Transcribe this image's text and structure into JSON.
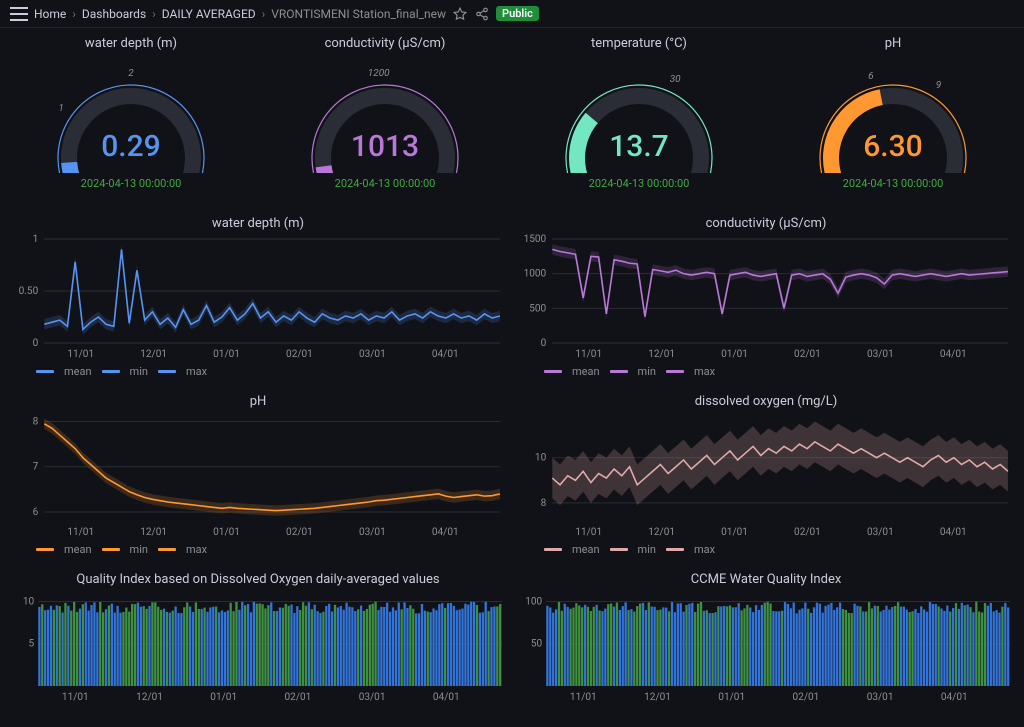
{
  "header": {
    "breadcrumbs": [
      "Home",
      "Dashboards",
      "DAILY AVERAGED",
      "VRONTISMENI Station_final_new"
    ],
    "public_label": "Public"
  },
  "timestamp": "2024-04-13 00:00:00",
  "colors": {
    "bg": "#111217",
    "grid": "#2a2d36",
    "axis_text": "#8e8e8e",
    "ts_green": "#3fa93f",
    "series": {
      "water_depth": "#5794f2",
      "conductivity": "#b877d9",
      "temperature": "#73e6c2",
      "ph": "#ff9830",
      "do": "#e0a8a8",
      "bar_blue": "#3274d9",
      "bar_green": "#3f9142"
    }
  },
  "gauges": [
    {
      "title": "water depth (m)",
      "value": "0.29",
      "color": "#5794f2",
      "min": 0,
      "max": 4,
      "ticks": [
        0,
        1,
        2,
        4
      ],
      "frac": 0.0725
    },
    {
      "title": "conductivity (μS/cm)",
      "value": "1013",
      "color": "#b877d9",
      "min": 0,
      "max": 2500,
      "ticks": [
        0,
        1200,
        2500
      ],
      "frac": 0.056
    },
    {
      "title": "temperature (°C)",
      "value": "13.7",
      "color": "#73e6c2",
      "min": 0,
      "max": 50,
      "ticks": [
        0,
        30,
        50
      ],
      "frac": 0.274
    },
    {
      "title": "pH",
      "value": "6.30",
      "color": "#ff9830",
      "min": 0,
      "max": 14,
      "ticks": [
        0,
        6,
        9,
        14
      ],
      "frac": 0.45
    }
  ],
  "x_axis": {
    "labels": [
      "11/01",
      "12/01",
      "01/01",
      "02/01",
      "03/01",
      "04/01"
    ],
    "positions": [
      0.08,
      0.24,
      0.4,
      0.56,
      0.72,
      0.88
    ]
  },
  "line_charts": [
    {
      "title": "water depth (m)",
      "color": "#5794f2",
      "yticks": [
        0.0,
        0.5,
        1.0
      ],
      "ylim": [
        0,
        1
      ],
      "series": [
        0.18,
        0.2,
        0.22,
        0.16,
        0.78,
        0.13,
        0.2,
        0.25,
        0.18,
        0.16,
        0.9,
        0.19,
        0.7,
        0.22,
        0.3,
        0.18,
        0.24,
        0.15,
        0.32,
        0.18,
        0.22,
        0.36,
        0.2,
        0.25,
        0.34,
        0.22,
        0.28,
        0.38,
        0.24,
        0.3,
        0.2,
        0.26,
        0.22,
        0.3,
        0.24,
        0.2,
        0.28,
        0.24,
        0.22,
        0.26,
        0.24,
        0.28,
        0.22,
        0.26,
        0.24,
        0.3,
        0.22,
        0.26,
        0.28,
        0.24,
        0.3,
        0.26,
        0.24,
        0.28,
        0.24,
        0.26,
        0.22,
        0.28,
        0.24,
        0.26
      ]
    },
    {
      "title": "conductivity (μS/cm)",
      "color": "#b877d9",
      "yticks": [
        0,
        500,
        1000,
        1500
      ],
      "ylim": [
        0,
        1500
      ],
      "series": [
        1350,
        1320,
        1300,
        1280,
        650,
        1250,
        1240,
        420,
        1200,
        1180,
        1150,
        1140,
        380,
        1060,
        1040,
        1020,
        1050,
        1000,
        980,
        1000,
        1020,
        1000,
        420,
        980,
        1000,
        1020,
        980,
        960,
        980,
        1000,
        500,
        980,
        1000,
        960,
        980,
        1000,
        920,
        720,
        950,
        980,
        1000,
        980,
        940,
        850,
        980,
        1000,
        980,
        960,
        980,
        1000,
        980,
        960,
        980,
        1000,
        980,
        990,
        1000,
        1010,
        1020,
        1030
      ]
    },
    {
      "title": "pH",
      "color": "#ff9830",
      "yticks": [
        6,
        7,
        8
      ],
      "ylim": [
        5.8,
        8.1
      ],
      "series": [
        7.95,
        7.85,
        7.7,
        7.55,
        7.4,
        7.2,
        7.05,
        6.9,
        6.75,
        6.65,
        6.55,
        6.45,
        6.38,
        6.32,
        6.28,
        6.25,
        6.22,
        6.2,
        6.18,
        6.16,
        6.14,
        6.12,
        6.1,
        6.08,
        6.1,
        6.08,
        6.07,
        6.06,
        6.05,
        6.04,
        6.03,
        6.04,
        6.05,
        6.06,
        6.07,
        6.08,
        6.1,
        6.12,
        6.14,
        6.16,
        6.18,
        6.2,
        6.22,
        6.25,
        6.26,
        6.28,
        6.3,
        6.32,
        6.34,
        6.36,
        6.38,
        6.4,
        6.35,
        6.32,
        6.34,
        6.36,
        6.38,
        6.35,
        6.36,
        6.4
      ]
    },
    {
      "title": "dissolved oxygen (mg/L)",
      "color": "#e0a8a8",
      "band": true,
      "yticks": [
        8,
        10
      ],
      "ylim": [
        7.2,
        11.8
      ],
      "series": [
        9.1,
        8.8,
        9.2,
        9.0,
        9.4,
        8.9,
        9.3,
        9.1,
        9.5,
        9.2,
        9.6,
        8.8,
        9.1,
        9.4,
        9.7,
        9.3,
        9.6,
        9.9,
        9.5,
        9.8,
        10.1,
        9.7,
        10.0,
        10.3,
        9.9,
        10.2,
        10.5,
        10.1,
        10.4,
        10.2,
        10.5,
        10.3,
        10.6,
        10.4,
        10.7,
        10.5,
        10.3,
        10.6,
        10.4,
        10.2,
        10.4,
        10.2,
        10.0,
        10.2,
        10.0,
        9.8,
        10.0,
        9.8,
        9.6,
        9.9,
        10.1,
        9.8,
        10.0,
        9.7,
        9.9,
        9.6,
        9.8,
        9.5,
        9.7,
        9.4
      ]
    }
  ],
  "legend_labels": [
    "mean",
    "min",
    "max"
  ],
  "bar_charts": [
    {
      "title": "Quality Index based on Dissolved Oxygen daily-averaged values",
      "yticks": [
        5,
        10
      ],
      "ylim": [
        0,
        11
      ],
      "bars": "mixed_high",
      "seed": 17
    },
    {
      "title": "CCME Water Quality Index",
      "yticks": [
        50,
        100
      ],
      "ylim": [
        0,
        110
      ],
      "bars": "mixed_high",
      "seed": 41
    }
  ]
}
